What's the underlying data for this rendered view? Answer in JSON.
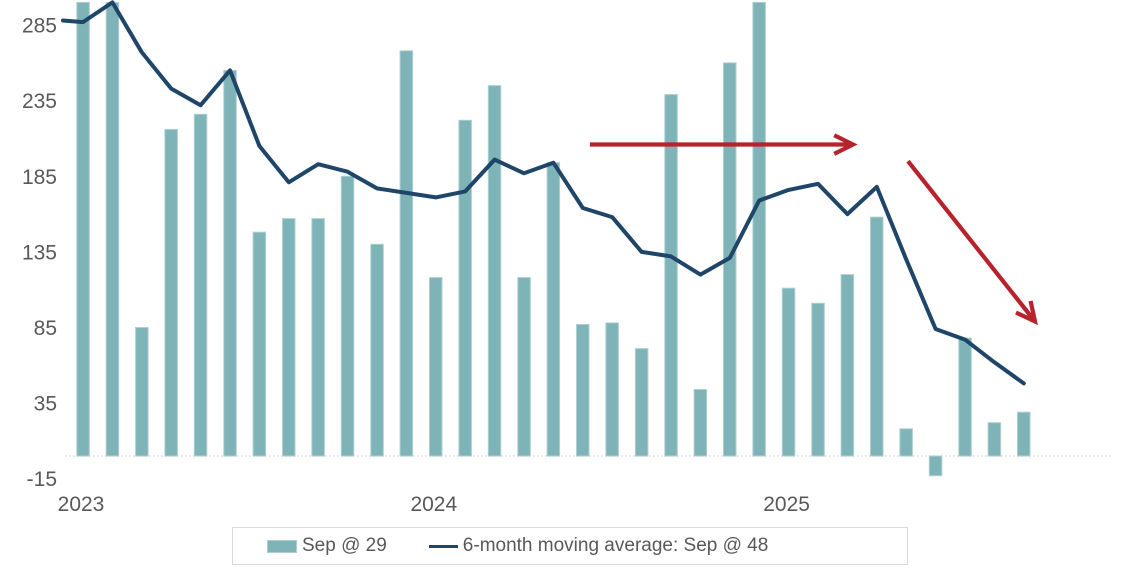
{
  "chart_data": {
    "type": "combo-bar-line",
    "title": "",
    "months": [
      "Jan 2023",
      "Feb 2023",
      "Mar 2023",
      "Apr 2023",
      "May 2023",
      "Jun 2023",
      "Jul 2023",
      "Aug 2023",
      "Sep 2023",
      "Oct 2023",
      "Nov 2023",
      "Dec 2023",
      "Jan 2024",
      "Feb 2024",
      "Mar 2024",
      "Apr 2024",
      "May 2024",
      "Jun 2024",
      "Jul 2024",
      "Aug 2024",
      "Sep 2024",
      "Oct 2024",
      "Nov 2024",
      "Dec 2024",
      "Jan 2025",
      "Feb 2025",
      "Mar 2025",
      "Apr 2025",
      "May 2025",
      "Jun 2025",
      "Jul 2025",
      "Aug 2025",
      "Sep 2025"
    ],
    "series": [
      {
        "name": "Sep @ 29",
        "type": "bar",
        "values": [
          300,
          300,
          85,
          216,
          226,
          255,
          148,
          157,
          157,
          185,
          140,
          268,
          118,
          222,
          245,
          118,
          194,
          87,
          88,
          71,
          239,
          44,
          260,
          300,
          111,
          101,
          120,
          158,
          18,
          -13,
          78,
          22,
          29
        ]
      },
      {
        "name": "6-month moving average: Sep @ 48",
        "type": "line",
        "values": [
          287,
          300,
          267,
          243,
          232,
          255,
          205,
          181,
          193,
          188,
          177,
          174,
          171,
          175,
          196,
          187,
          194,
          164,
          158,
          135,
          132,
          120,
          131,
          169,
          176,
          180,
          160,
          178,
          130,
          84,
          77,
          62,
          48
        ],
        "lead_in_point": {
          "x_index": -0.68,
          "value": 288
        }
      }
    ],
    "y_axis": {
      "tick_values": [
        285,
        235,
        185,
        135,
        85,
        35,
        -15
      ],
      "min": -15,
      "max": 301,
      "gridlines": false
    },
    "x_axis": {
      "year_labels": [
        {
          "label": "2023",
          "month_index": 0
        },
        {
          "label": "2024",
          "month_index": 12
        },
        {
          "label": "2025",
          "month_index": 24
        }
      ]
    },
    "annotations": {
      "arrows": [
        {
          "name": "flat-trend-arrow",
          "x1_index": 17.24,
          "v1": 206,
          "x2_index": 26.19,
          "v2": 206
        },
        {
          "name": "down-trend-arrow",
          "x1_index": 28.06,
          "v1": 195,
          "x2_index": 32.38,
          "v2": 89
        }
      ]
    },
    "legend": {
      "bar_label": "Sep @ 29",
      "line_label": "6-month moving average: Sep @ 48"
    }
  },
  "colors": {
    "bar": "#7EB4B8",
    "bar_edge": "#AECFD1",
    "line": "#1F4568",
    "arrow": "#B7222B",
    "axis_text": "#595959",
    "baseline": "#D9D9D9",
    "legend_border": "#D9D9D9",
    "legend_text": "#595959"
  }
}
